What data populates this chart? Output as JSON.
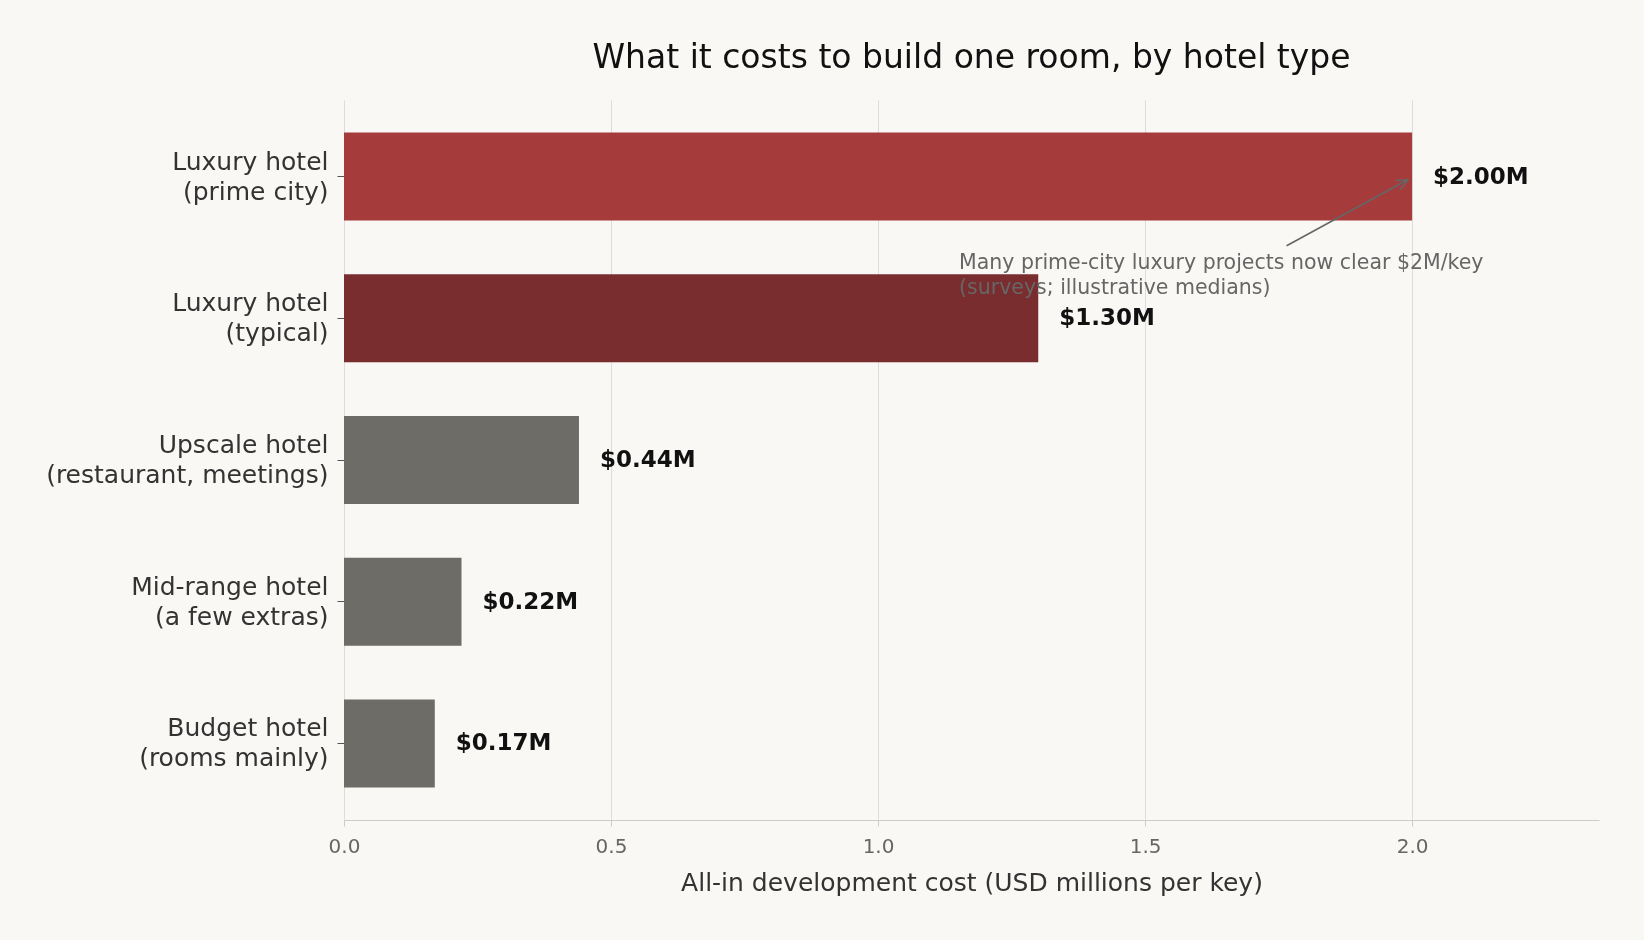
{
  "chart_data": {
    "type": "bar",
    "orientation": "horizontal",
    "title": "What it costs to build one room, by hotel type",
    "xlabel": "All-in development cost (USD millions per key)",
    "categories": [
      "Luxury hotel\n(prime city)",
      "Luxury hotel\n(typical)",
      "Upscale hotel\n(restaurant, meetings)",
      "Mid-range hotel\n(a few extras)",
      "Budget hotel\n(rooms mainly)"
    ],
    "values": [
      2.0,
      1.3,
      0.44,
      0.22,
      0.17
    ],
    "colors": [
      "#a63b3c",
      "#7a2d2e",
      "#6d6c66",
      "#6d6c66",
      "#6d6c66"
    ],
    "value_labels": [
      "$2.00M",
      "$1.30M",
      "$0.44M",
      "$0.22M",
      "$0.17M"
    ],
    "xlim": [
      0,
      2.35
    ],
    "xticks": [
      {
        "value": 0,
        "label": "0.0"
      },
      0.5,
      {
        "value": 1,
        "label": "1.0"
      },
      1.5,
      {
        "value": 2,
        "label": "2.0"
      }
    ],
    "grid": "x",
    "annotations": [
      {
        "text": "Many prime-city luxury projects now clear $2M/key\n(surveys; illustrative medians)",
        "x": 2.0,
        "y": "Luxury hotel\n(prime city)"
      }
    ]
  }
}
